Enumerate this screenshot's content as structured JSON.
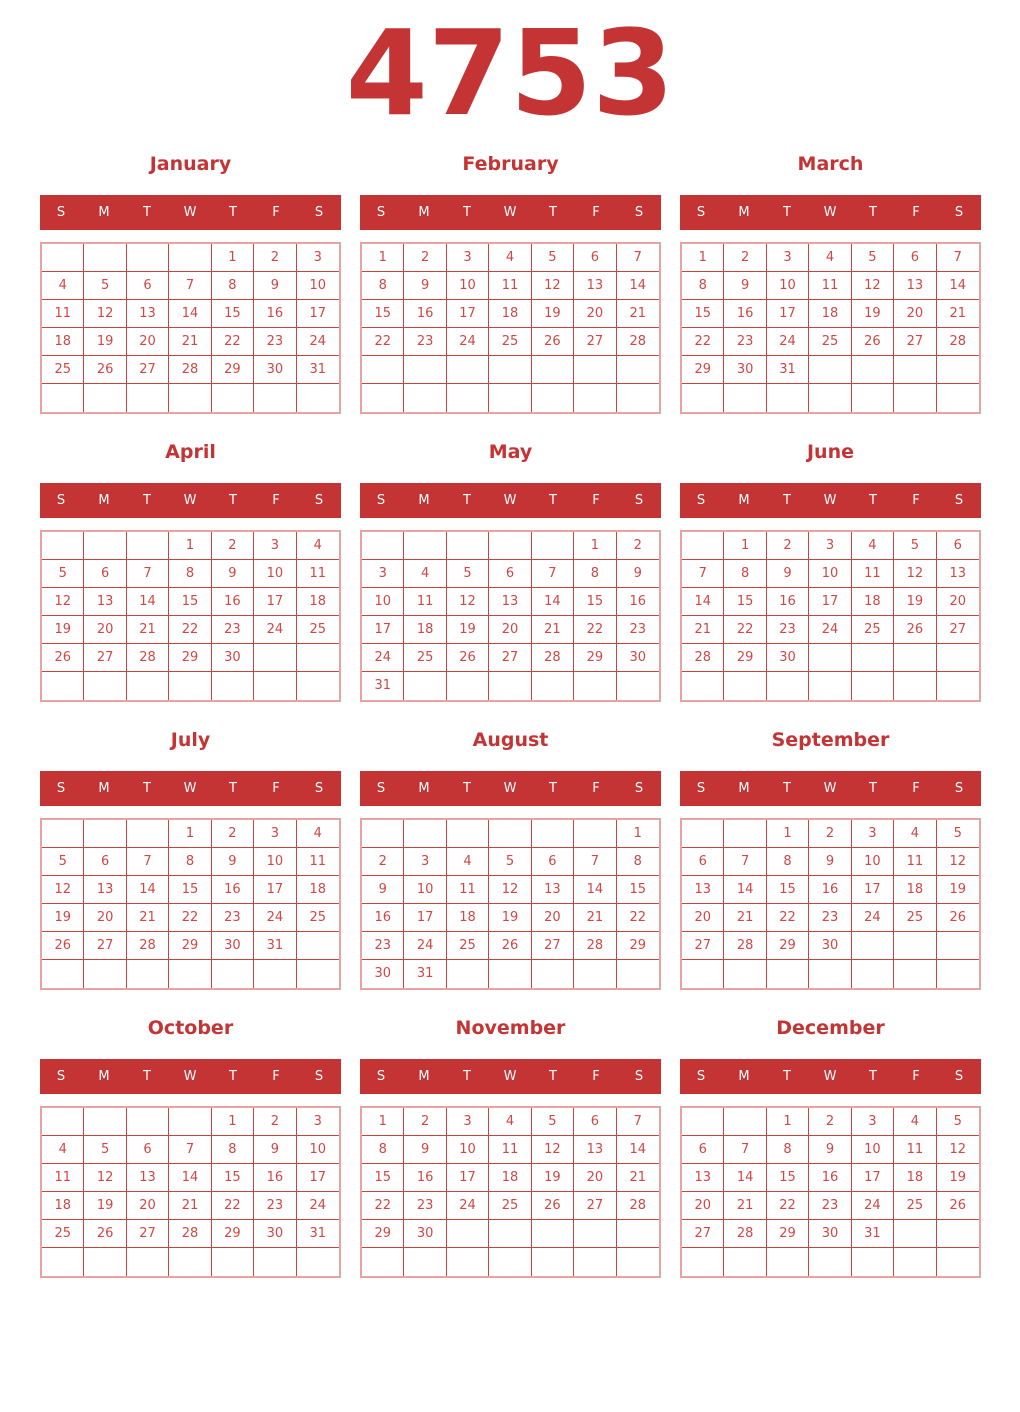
{
  "title": "4753",
  "weekdays": [
    "S",
    "M",
    "T",
    "W",
    "T",
    "F",
    "S"
  ],
  "colors": {
    "primary_red": "#c53434",
    "day_number_red": "#d04747",
    "grid_line_red": "#c94343",
    "grid_outline_pink": "#e8a3a0",
    "header_text": "#ffffff",
    "background": "#ffffff"
  },
  "months": [
    {
      "name": "January",
      "weeks": [
        [
          "",
          "",
          "",
          "",
          "1",
          "2",
          "3"
        ],
        [
          "4",
          "5",
          "6",
          "7",
          "8",
          "9",
          "10"
        ],
        [
          "11",
          "12",
          "13",
          "14",
          "15",
          "16",
          "17"
        ],
        [
          "18",
          "19",
          "20",
          "21",
          "22",
          "23",
          "24"
        ],
        [
          "25",
          "26",
          "27",
          "28",
          "29",
          "30",
          "31"
        ],
        [
          "",
          "",
          "",
          "",
          "",
          "",
          ""
        ]
      ]
    },
    {
      "name": "February",
      "weeks": [
        [
          "1",
          "2",
          "3",
          "4",
          "5",
          "6",
          "7"
        ],
        [
          "8",
          "9",
          "10",
          "11",
          "12",
          "13",
          "14"
        ],
        [
          "15",
          "16",
          "17",
          "18",
          "19",
          "20",
          "21"
        ],
        [
          "22",
          "23",
          "24",
          "25",
          "26",
          "27",
          "28"
        ],
        [
          "",
          "",
          "",
          "",
          "",
          "",
          ""
        ],
        [
          "",
          "",
          "",
          "",
          "",
          "",
          ""
        ]
      ]
    },
    {
      "name": "March",
      "weeks": [
        [
          "1",
          "2",
          "3",
          "4",
          "5",
          "6",
          "7"
        ],
        [
          "8",
          "9",
          "10",
          "11",
          "12",
          "13",
          "14"
        ],
        [
          "15",
          "16",
          "17",
          "18",
          "19",
          "20",
          "21"
        ],
        [
          "22",
          "23",
          "24",
          "25",
          "26",
          "27",
          "28"
        ],
        [
          "29",
          "30",
          "31",
          "",
          "",
          "",
          ""
        ],
        [
          "",
          "",
          "",
          "",
          "",
          "",
          ""
        ]
      ]
    },
    {
      "name": "April",
      "weeks": [
        [
          "",
          "",
          "",
          "1",
          "2",
          "3",
          "4"
        ],
        [
          "5",
          "6",
          "7",
          "8",
          "9",
          "10",
          "11"
        ],
        [
          "12",
          "13",
          "14",
          "15",
          "16",
          "17",
          "18"
        ],
        [
          "19",
          "20",
          "21",
          "22",
          "23",
          "24",
          "25"
        ],
        [
          "26",
          "27",
          "28",
          "29",
          "30",
          "",
          ""
        ],
        [
          "",
          "",
          "",
          "",
          "",
          "",
          ""
        ]
      ]
    },
    {
      "name": "May",
      "weeks": [
        [
          "",
          "",
          "",
          "",
          "",
          "1",
          "2"
        ],
        [
          "3",
          "4",
          "5",
          "6",
          "7",
          "8",
          "9"
        ],
        [
          "10",
          "11",
          "12",
          "13",
          "14",
          "15",
          "16"
        ],
        [
          "17",
          "18",
          "19",
          "20",
          "21",
          "22",
          "23"
        ],
        [
          "24",
          "25",
          "26",
          "27",
          "28",
          "29",
          "30"
        ],
        [
          "31",
          "",
          "",
          "",
          "",
          "",
          ""
        ]
      ]
    },
    {
      "name": "June",
      "weeks": [
        [
          "",
          "1",
          "2",
          "3",
          "4",
          "5",
          "6"
        ],
        [
          "7",
          "8",
          "9",
          "10",
          "11",
          "12",
          "13"
        ],
        [
          "14",
          "15",
          "16",
          "17",
          "18",
          "19",
          "20"
        ],
        [
          "21",
          "22",
          "23",
          "24",
          "25",
          "26",
          "27"
        ],
        [
          "28",
          "29",
          "30",
          "",
          "",
          "",
          ""
        ],
        [
          "",
          "",
          "",
          "",
          "",
          "",
          ""
        ]
      ]
    },
    {
      "name": "July",
      "weeks": [
        [
          "",
          "",
          "",
          "1",
          "2",
          "3",
          "4"
        ],
        [
          "5",
          "6",
          "7",
          "8",
          "9",
          "10",
          "11"
        ],
        [
          "12",
          "13",
          "14",
          "15",
          "16",
          "17",
          "18"
        ],
        [
          "19",
          "20",
          "21",
          "22",
          "23",
          "24",
          "25"
        ],
        [
          "26",
          "27",
          "28",
          "29",
          "30",
          "31",
          ""
        ],
        [
          "",
          "",
          "",
          "",
          "",
          "",
          ""
        ]
      ]
    },
    {
      "name": "August",
      "weeks": [
        [
          "",
          "",
          "",
          "",
          "",
          "",
          "1"
        ],
        [
          "2",
          "3",
          "4",
          "5",
          "6",
          "7",
          "8"
        ],
        [
          "9",
          "10",
          "11",
          "12",
          "13",
          "14",
          "15"
        ],
        [
          "16",
          "17",
          "18",
          "19",
          "20",
          "21",
          "22"
        ],
        [
          "23",
          "24",
          "25",
          "26",
          "27",
          "28",
          "29"
        ],
        [
          "30",
          "31",
          "",
          "",
          "",
          "",
          ""
        ]
      ]
    },
    {
      "name": "September",
      "weeks": [
        [
          "",
          "",
          "1",
          "2",
          "3",
          "4",
          "5"
        ],
        [
          "6",
          "7",
          "8",
          "9",
          "10",
          "11",
          "12"
        ],
        [
          "13",
          "14",
          "15",
          "16",
          "17",
          "18",
          "19"
        ],
        [
          "20",
          "21",
          "22",
          "23",
          "24",
          "25",
          "26"
        ],
        [
          "27",
          "28",
          "29",
          "30",
          "",
          "",
          ""
        ],
        [
          "",
          "",
          "",
          "",
          "",
          "",
          ""
        ]
      ]
    },
    {
      "name": "October",
      "weeks": [
        [
          "",
          "",
          "",
          "",
          "1",
          "2",
          "3"
        ],
        [
          "4",
          "5",
          "6",
          "7",
          "8",
          "9",
          "10"
        ],
        [
          "11",
          "12",
          "13",
          "14",
          "15",
          "16",
          "17"
        ],
        [
          "18",
          "19",
          "20",
          "21",
          "22",
          "23",
          "24"
        ],
        [
          "25",
          "26",
          "27",
          "28",
          "29",
          "30",
          "31"
        ],
        [
          "",
          "",
          "",
          "",
          "",
          "",
          ""
        ]
      ]
    },
    {
      "name": "November",
      "weeks": [
        [
          "1",
          "2",
          "3",
          "4",
          "5",
          "6",
          "7"
        ],
        [
          "8",
          "9",
          "10",
          "11",
          "12",
          "13",
          "14"
        ],
        [
          "15",
          "16",
          "17",
          "18",
          "19",
          "20",
          "21"
        ],
        [
          "22",
          "23",
          "24",
          "25",
          "26",
          "27",
          "28"
        ],
        [
          "29",
          "30",
          "",
          "",
          "",
          "",
          ""
        ],
        [
          "",
          "",
          "",
          "",
          "",
          "",
          ""
        ]
      ]
    },
    {
      "name": "December",
      "weeks": [
        [
          "",
          "",
          "1",
          "2",
          "3",
          "4",
          "5"
        ],
        [
          "6",
          "7",
          "8",
          "9",
          "10",
          "11",
          "12"
        ],
        [
          "13",
          "14",
          "15",
          "16",
          "17",
          "18",
          "19"
        ],
        [
          "20",
          "21",
          "22",
          "23",
          "24",
          "25",
          "26"
        ],
        [
          "27",
          "28",
          "29",
          "30",
          "31",
          "",
          ""
        ],
        [
          "",
          "",
          "",
          "",
          "",
          "",
          ""
        ]
      ]
    }
  ]
}
